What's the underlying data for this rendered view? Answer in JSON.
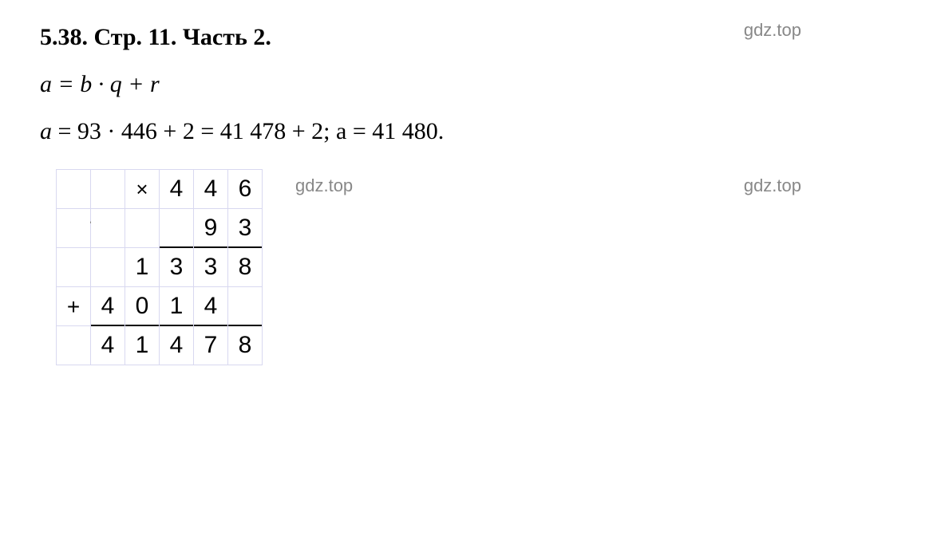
{
  "title": {
    "text": "5.38. Стр. 11. Часть 2."
  },
  "formula": {
    "text": "a = b · q + r"
  },
  "calculation": {
    "prefix_var": "a",
    "equals1": " = 93 · 446 + 2 = 41 478 + 2; a = ",
    "result": "41 480."
  },
  "watermarks": {
    "text": "gdz.top"
  },
  "multiplication": {
    "cross": "×",
    "plus": "+",
    "rows": {
      "r0": {
        "c0": "",
        "c1": "",
        "c2": "",
        "c3": "4",
        "c4": "4",
        "c5": "6"
      },
      "r1": {
        "c0": "",
        "c1": "",
        "c2": "",
        "c3": "",
        "c4": "9",
        "c5": "3"
      },
      "r2": {
        "c0": "",
        "c1": "",
        "c2": "1",
        "c3": "3",
        "c4": "3",
        "c5": "8"
      },
      "r3": {
        "c0": "",
        "c1": "4",
        "c2": "0",
        "c3": "1",
        "c4": "4",
        "c5": ""
      },
      "r4": {
        "c0": "",
        "c1": "4",
        "c2": "1",
        "c3": "4",
        "c4": "7",
        "c5": "8"
      }
    }
  },
  "colors": {
    "grid_border": "#d8d8f0",
    "text": "#000000",
    "watermark": "#888888",
    "background": "#ffffff"
  }
}
